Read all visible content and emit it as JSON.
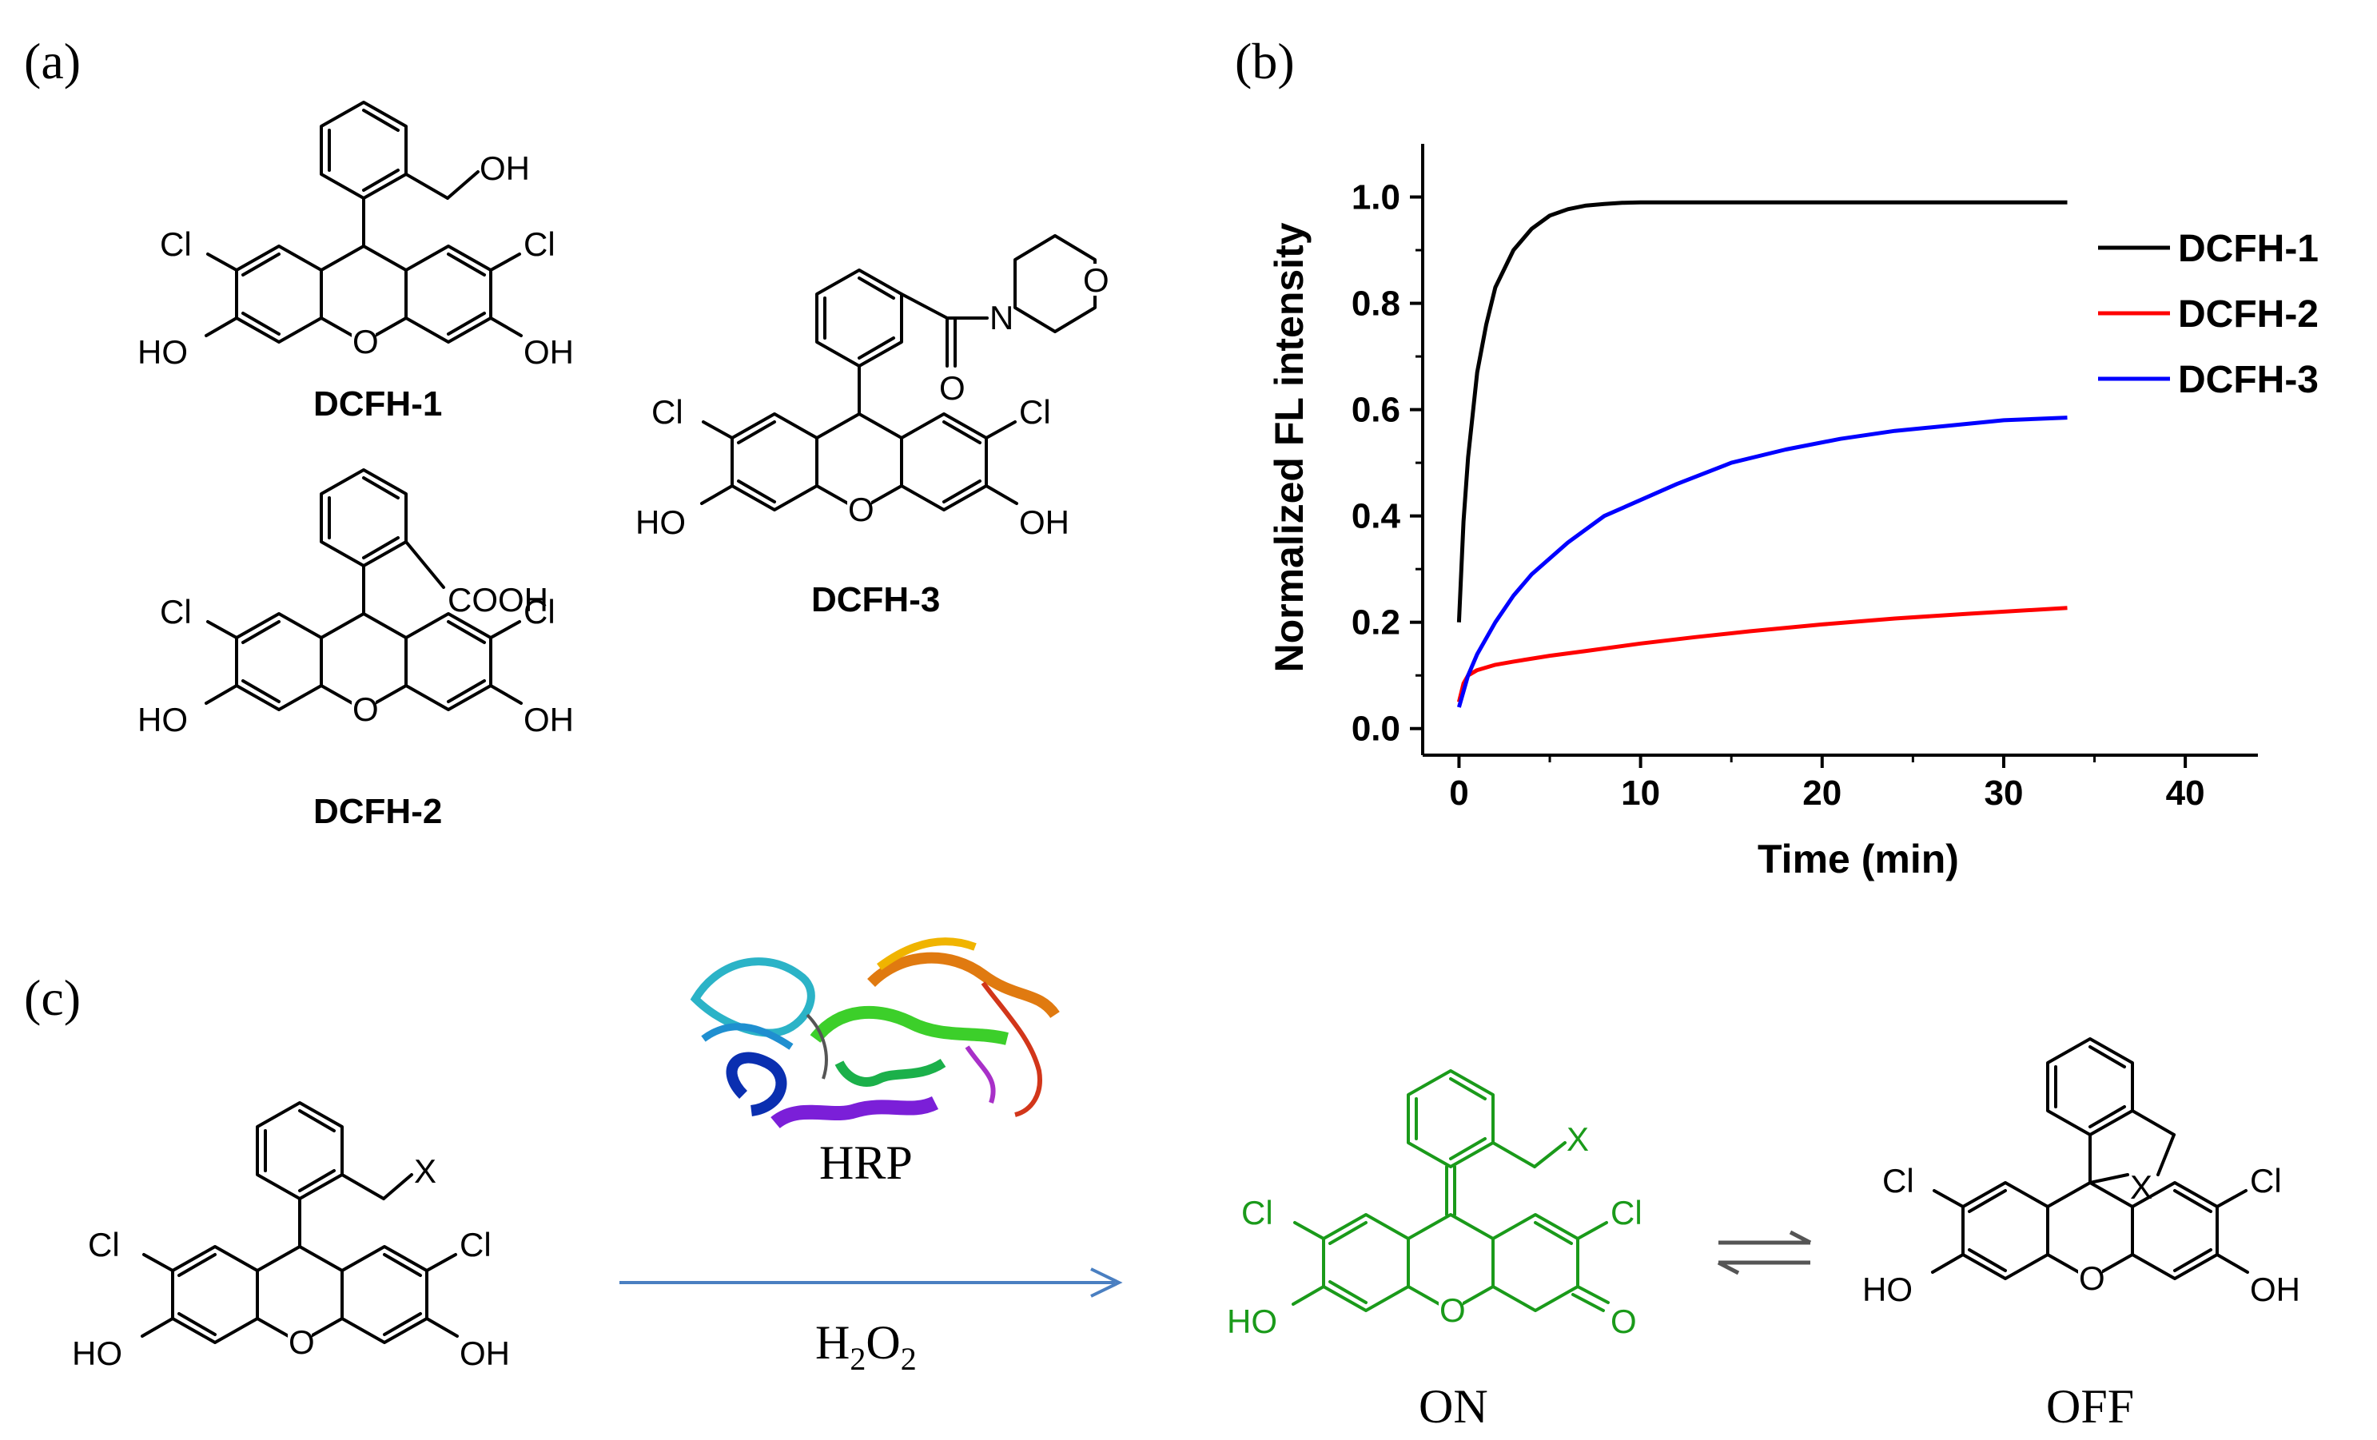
{
  "panels": {
    "a": "(a)",
    "b": "(b)",
    "c": "(c)"
  },
  "panel_a": {
    "compound1": {
      "name": "DCFH-1",
      "sub": "OH",
      "cl_left": "Cl",
      "cl_right": "Cl",
      "ho": "HO",
      "oh": "OH",
      "o": "O"
    },
    "compound2": {
      "name": "DCFH-2",
      "sub": "COOH",
      "cl_left": "Cl",
      "cl_right": "Cl",
      "ho": "HO",
      "oh": "OH",
      "o": "O"
    },
    "compound3": {
      "name": "DCFH-3",
      "amide_o": "O",
      "amide_n": "N",
      "morph_o": "O",
      "cl_left": "Cl",
      "cl_right": "Cl",
      "ho": "HO",
      "oh": "OH",
      "o": "O"
    }
  },
  "panel_c": {
    "left": {
      "x": "X",
      "cl_left": "Cl",
      "cl_right": "Cl",
      "ho": "HO",
      "oh": "OH",
      "o": "O"
    },
    "enzyme_label": "HRP",
    "reagent": {
      "main": "H",
      "sub1": "2",
      "mid": "O",
      "sub2": "2"
    },
    "on": {
      "label": "ON",
      "x": "X",
      "cl_left": "Cl",
      "cl_right": "Cl",
      "ho": "HO",
      "o_ring": "O",
      "o_keto": "O"
    },
    "off": {
      "label": "OFF",
      "x": "X",
      "cl_left": "Cl",
      "cl_right": "Cl",
      "ho": "HO",
      "oh": "OH",
      "o": "O"
    },
    "colors": {
      "on_structure": "#1a9a1a",
      "arrow": "#4a7fc1"
    }
  },
  "chart_data": {
    "type": "line",
    "title": "",
    "xlabel": "Time (min)",
    "ylabel": "Normalized FL intensity",
    "xlim": [
      -2,
      44
    ],
    "ylim": [
      -0.05,
      1.1
    ],
    "xticks": [
      0,
      10,
      20,
      30,
      40
    ],
    "yticks": [
      0.0,
      0.2,
      0.4,
      0.6,
      0.8,
      1.0
    ],
    "xtick_labels": [
      "0",
      "10",
      "20",
      "30",
      "40"
    ],
    "ytick_labels": [
      "0.0",
      "0.2",
      "0.4",
      "0.6",
      "0.8",
      "1.0"
    ],
    "legend_position": "top-right",
    "series": [
      {
        "name": "DCFH-1",
        "color": "#000000",
        "x": [
          0,
          0.25,
          0.5,
          1,
          1.5,
          2,
          3,
          4,
          5,
          6,
          7,
          8,
          9,
          10,
          12,
          15,
          20,
          25,
          30,
          33.5
        ],
        "y": [
          0.2,
          0.39,
          0.51,
          0.67,
          0.76,
          0.83,
          0.9,
          0.94,
          0.965,
          0.977,
          0.984,
          0.987,
          0.989,
          0.99,
          0.99,
          0.99,
          0.99,
          0.99,
          0.99,
          0.99
        ]
      },
      {
        "name": "DCFH-2",
        "color": "#ff0000",
        "x": [
          0,
          0.25,
          0.5,
          1,
          2,
          3,
          5,
          7,
          10,
          13,
          16,
          20,
          24,
          28,
          33.5
        ],
        "y": [
          0.05,
          0.085,
          0.1,
          0.11,
          0.12,
          0.126,
          0.137,
          0.146,
          0.16,
          0.172,
          0.183,
          0.196,
          0.207,
          0.216,
          0.227
        ]
      },
      {
        "name": "DCFH-3",
        "color": "#0000ff",
        "x": [
          0,
          0.25,
          0.5,
          1,
          2,
          3,
          4,
          6,
          8,
          10,
          12,
          15,
          18,
          21,
          24,
          27,
          30,
          33.5
        ],
        "y": [
          0.04,
          0.07,
          0.1,
          0.14,
          0.2,
          0.25,
          0.29,
          0.35,
          0.4,
          0.43,
          0.46,
          0.5,
          0.525,
          0.545,
          0.56,
          0.57,
          0.58,
          0.585
        ]
      }
    ]
  }
}
